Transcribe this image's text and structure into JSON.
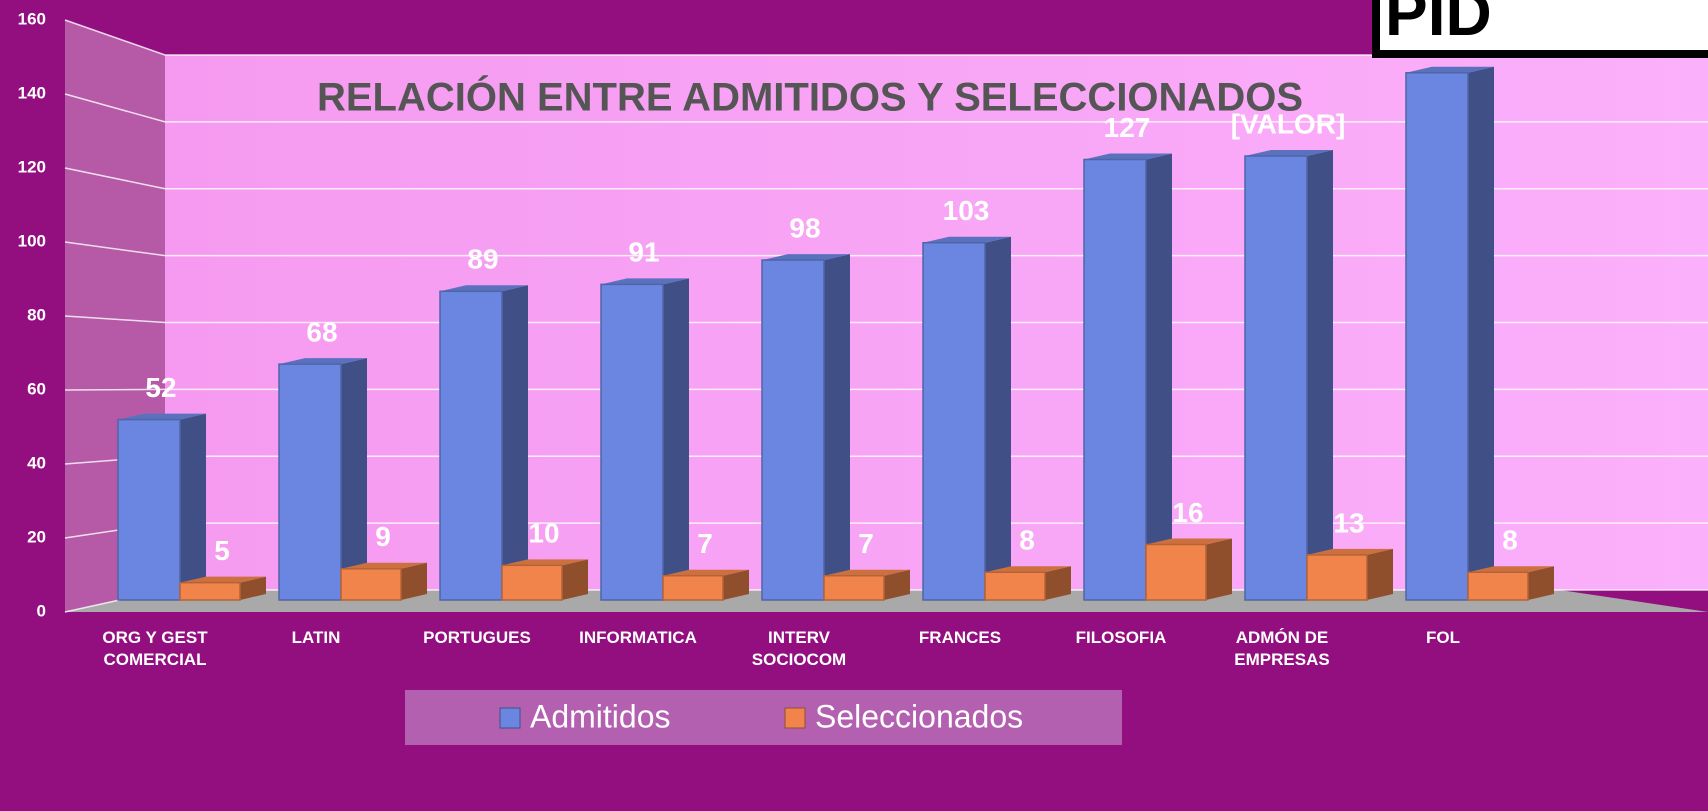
{
  "logo": "PID",
  "chart_data": {
    "type": "bar3d",
    "title": "RELACIÓN ENTRE ADMITIDOS Y SELECCIONADOS",
    "categories": [
      "ORG Y GEST COMERCIAL",
      "LATIN",
      "PORTUGUES",
      "INFORMATICA",
      "INTERV SOCIOCOM",
      "FRANCES",
      "FILOSOFIA",
      "ADMÓN DE EMPRESAS",
      "FOL"
    ],
    "series": [
      {
        "name": "Admitidos",
        "color": "#6a86e0",
        "values": [
          52,
          68,
          89,
          91,
          98,
          103,
          127,
          128,
          152
        ],
        "value_labels": [
          "52",
          "68",
          "89",
          "91",
          "98",
          "103",
          "127",
          "[VALOR]",
          null
        ]
      },
      {
        "name": "Seleccionados",
        "color": "#f0844a",
        "values": [
          5,
          9,
          10,
          7,
          7,
          8,
          16,
          13,
          8
        ]
      }
    ],
    "ylim": [
      0,
      160
    ],
    "yticks": [
      0,
      20,
      40,
      60,
      80,
      100,
      120,
      140,
      160
    ],
    "grid": true,
    "legend": "bottom"
  }
}
